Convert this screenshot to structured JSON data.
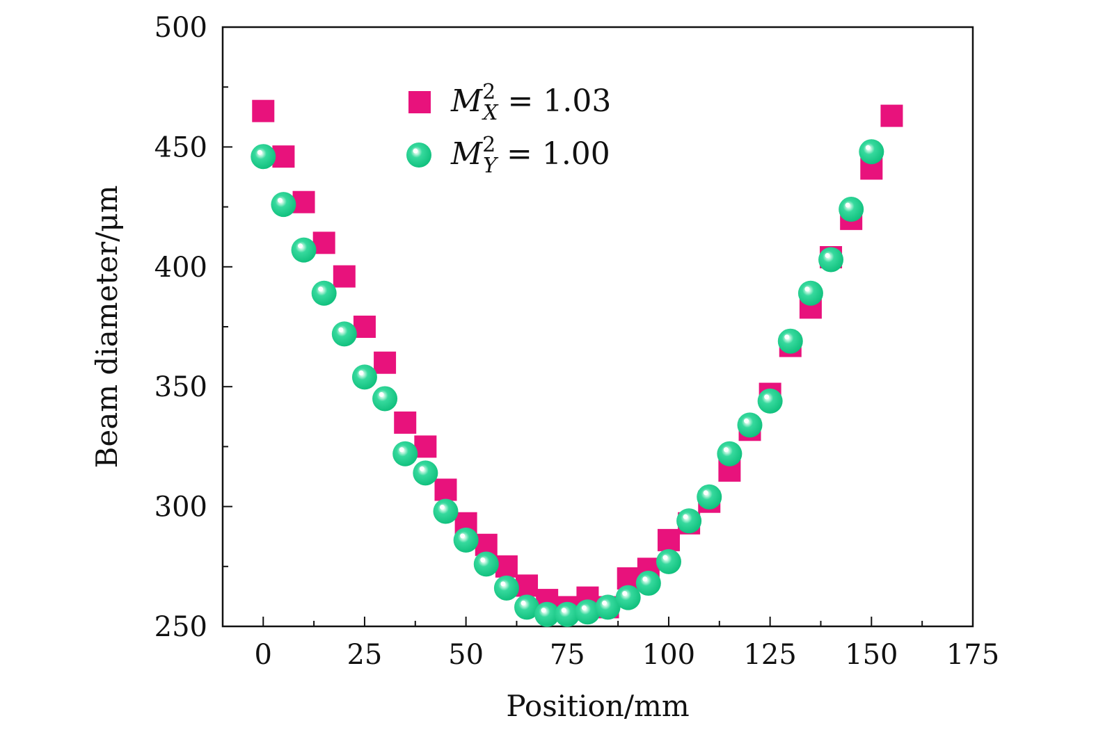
{
  "chart_data": {
    "type": "scatter",
    "xlabel": "Position/mm",
    "ylabel": "Beam diameter/μm",
    "xlim": [
      -10,
      175
    ],
    "ylim": [
      250,
      500
    ],
    "xticks": [
      0,
      25,
      50,
      75,
      100,
      125,
      150,
      175
    ],
    "yticks": [
      250,
      300,
      350,
      400,
      450,
      500
    ],
    "grid": false,
    "legend_position": "top-center",
    "series": [
      {
        "name": "M_X^2 = 1.03",
        "legend": {
          "var": "M",
          "sup": "2",
          "sub": "X",
          "eq": "= 1.03"
        },
        "marker": "square",
        "color": "#e8127c",
        "x": [
          0,
          5,
          10,
          15,
          20,
          25,
          30,
          35,
          40,
          45,
          50,
          55,
          60,
          65,
          70,
          75,
          80,
          85,
          90,
          95,
          100,
          105,
          110,
          115,
          120,
          125,
          130,
          135,
          140,
          145,
          150,
          155
        ],
        "y": [
          465,
          446,
          427,
          410,
          396,
          375,
          360,
          335,
          325,
          307,
          293,
          284,
          275,
          267,
          261,
          258,
          262,
          258,
          270,
          274,
          286,
          293,
          302,
          315,
          332,
          347,
          367,
          383,
          404,
          420,
          441,
          463
        ]
      },
      {
        "name": "M_Y^2 = 1.00",
        "legend": {
          "var": "M",
          "sup": "2",
          "sub": "Y",
          "eq": "= 1.00"
        },
        "marker": "sphere",
        "color": "#1fcf8c",
        "x": [
          0,
          5,
          10,
          15,
          20,
          25,
          30,
          35,
          40,
          45,
          50,
          55,
          60,
          65,
          70,
          75,
          80,
          85,
          90,
          95,
          100,
          105,
          110,
          115,
          120,
          125,
          130,
          135,
          140,
          145,
          150
        ],
        "y": [
          446,
          426,
          407,
          389,
          372,
          354,
          345,
          322,
          314,
          298,
          286,
          276,
          266,
          258,
          255,
          255,
          256,
          258,
          262,
          268,
          277,
          294,
          304,
          322,
          334,
          344,
          369,
          389,
          403,
          424,
          448
        ]
      }
    ]
  }
}
